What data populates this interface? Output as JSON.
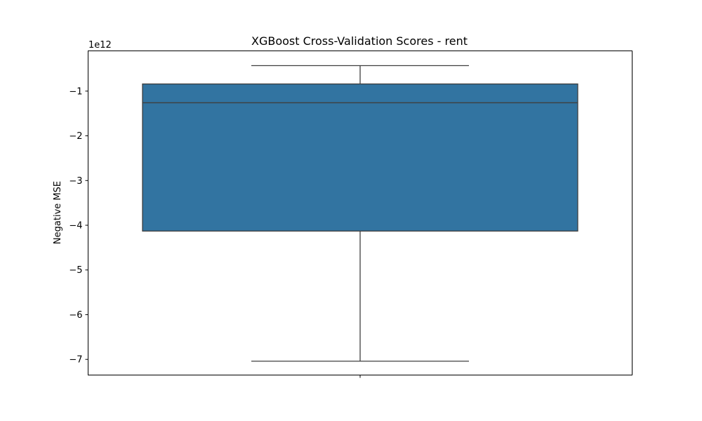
{
  "chart_data": {
    "type": "box",
    "title": "XGBoost Cross-Validation Scores - rent",
    "xlabel": "",
    "ylabel": "Negative MSE",
    "y_offset_label": "1e12",
    "y_multiplier": 1000000000000.0,
    "ylim": [
      -7.35,
      -0.1
    ],
    "yticks": [
      -1,
      -2,
      -3,
      -4,
      -5,
      -6,
      -7
    ],
    "ytick_labels": [
      "−1",
      "−2",
      "−3",
      "−4",
      "−5",
      "−6",
      "−7"
    ],
    "box": {
      "whisker_high": -0.43,
      "q3": -0.84,
      "median": -1.26,
      "q1": -4.13,
      "whisker_low": -7.04
    },
    "colors": {
      "box_fill": "#3274a1",
      "line": "#3f3f3f"
    }
  }
}
